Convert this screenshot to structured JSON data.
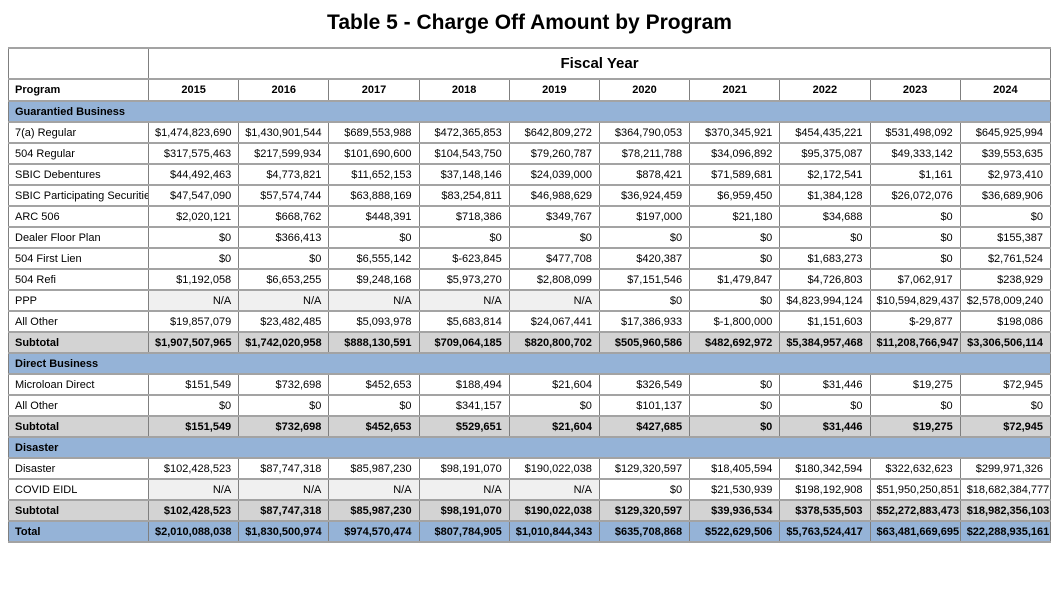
{
  "title": "Table 5 - Charge Off Amount by Program",
  "colors": {
    "section_header_blue": "#95B3D7",
    "subtotal_gray": "#D3D3D3",
    "na_cell_gray": "#F0F0F0",
    "border_gray": "#7f7f7f"
  },
  "table": {
    "fiscal_year_header": "Fiscal Year",
    "program_header": "Program",
    "subtotal_label": "Subtotal",
    "years": [
      "2015",
      "2016",
      "2017",
      "2018",
      "2019",
      "2020",
      "2021",
      "2022",
      "2023",
      "2024"
    ],
    "sections": [
      {
        "name": "Guarantied Business",
        "rows": [
          {
            "label": "7(a) Regular",
            "values": [
              "$1,474,823,690",
              "$1,430,901,544",
              "$689,553,988",
              "$472,365,853",
              "$642,809,272",
              "$364,790,053",
              "$370,345,921",
              "$454,435,221",
              "$531,498,092",
              "$645,925,994"
            ]
          },
          {
            "label": "504 Regular",
            "values": [
              "$317,575,463",
              "$217,599,934",
              "$101,690,600",
              "$104,543,750",
              "$79,260,787",
              "$78,211,788",
              "$34,096,892",
              "$95,375,087",
              "$49,333,142",
              "$39,553,635"
            ]
          },
          {
            "label": "SBIC Debentures",
            "values": [
              "$44,492,463",
              "$4,773,821",
              "$11,652,153",
              "$37,148,146",
              "$24,039,000",
              "$878,421",
              "$71,589,681",
              "$2,172,541",
              "$1,161",
              "$2,973,410"
            ]
          },
          {
            "label": "SBIC Participating Securities",
            "values": [
              "$47,547,090",
              "$57,574,744",
              "$63,888,169",
              "$83,254,811",
              "$46,988,629",
              "$36,924,459",
              "$6,959,450",
              "$1,384,128",
              "$26,072,076",
              "$36,689,906"
            ]
          },
          {
            "label": "ARC 506",
            "values": [
              "$2,020,121",
              "$668,762",
              "$448,391",
              "$718,386",
              "$349,767",
              "$197,000",
              "$21,180",
              "$34,688",
              "$0",
              "$0"
            ]
          },
          {
            "label": "Dealer Floor Plan",
            "values": [
              "$0",
              "$366,413",
              "$0",
              "$0",
              "$0",
              "$0",
              "$0",
              "$0",
              "$0",
              "$155,387"
            ]
          },
          {
            "label": "504 First Lien",
            "values": [
              "$0",
              "$0",
              "$6,555,142",
              "$-623,845",
              "$477,708",
              "$420,387",
              "$0",
              "$1,683,273",
              "$0",
              "$2,761,524"
            ]
          },
          {
            "label": "504 Refi",
            "values": [
              "$1,192,058",
              "$6,653,255",
              "$9,248,168",
              "$5,973,270",
              "$2,808,099",
              "$7,151,546",
              "$1,479,847",
              "$4,726,803",
              "$7,062,917",
              "$238,929"
            ]
          },
          {
            "label": "PPP",
            "values": [
              "N/A",
              "N/A",
              "N/A",
              "N/A",
              "N/A",
              "$0",
              "$0",
              "$4,823,994,124",
              "$10,594,829,437",
              "$2,578,009,240"
            ]
          },
          {
            "label": "All Other",
            "values": [
              "$19,857,079",
              "$23,482,485",
              "$5,093,978",
              "$5,683,814",
              "$24,067,441",
              "$17,386,933",
              "$-1,800,000",
              "$1,151,603",
              "$-29,877",
              "$198,086"
            ]
          }
        ],
        "subtotal": [
          "$1,907,507,965",
          "$1,742,020,958",
          "$888,130,591",
          "$709,064,185",
          "$820,800,702",
          "$505,960,586",
          "$482,692,972",
          "$5,384,957,468",
          "$11,208,766,947",
          "$3,306,506,114"
        ]
      },
      {
        "name": "Direct Business",
        "rows": [
          {
            "label": "Microloan Direct",
            "values": [
              "$151,549",
              "$732,698",
              "$452,653",
              "$188,494",
              "$21,604",
              "$326,549",
              "$0",
              "$31,446",
              "$19,275",
              "$72,945"
            ]
          },
          {
            "label": "All Other",
            "values": [
              "$0",
              "$0",
              "$0",
              "$341,157",
              "$0",
              "$101,137",
              "$0",
              "$0",
              "$0",
              "$0"
            ]
          }
        ],
        "subtotal": [
          "$151,549",
          "$732,698",
          "$452,653",
          "$529,651",
          "$21,604",
          "$427,685",
          "$0",
          "$31,446",
          "$19,275",
          "$72,945"
        ]
      },
      {
        "name": "Disaster",
        "rows": [
          {
            "label": "Disaster",
            "values": [
              "$102,428,523",
              "$87,747,318",
              "$85,987,230",
              "$98,191,070",
              "$190,022,038",
              "$129,320,597",
              "$18,405,594",
              "$180,342,594",
              "$322,632,623",
              "$299,971,326"
            ]
          },
          {
            "label": "COVID EIDL",
            "values": [
              "N/A",
              "N/A",
              "N/A",
              "N/A",
              "N/A",
              "$0",
              "$21,530,939",
              "$198,192,908",
              "$51,950,250,851",
              "$18,682,384,777"
            ]
          }
        ],
        "subtotal": [
          "$102,428,523",
          "$87,747,318",
          "$85,987,230",
          "$98,191,070",
          "$190,022,038",
          "$129,320,597",
          "$39,936,534",
          "$378,535,503",
          "$52,272,883,473",
          "$18,982,356,103"
        ]
      }
    ],
    "total": {
      "label": "Total",
      "values": [
        "$2,010,088,038",
        "$1,830,500,974",
        "$974,570,474",
        "$807,784,905",
        "$1,010,844,343",
        "$635,708,868",
        "$522,629,506",
        "$5,763,524,417",
        "$63,481,669,695",
        "$22,288,935,161"
      ]
    }
  }
}
